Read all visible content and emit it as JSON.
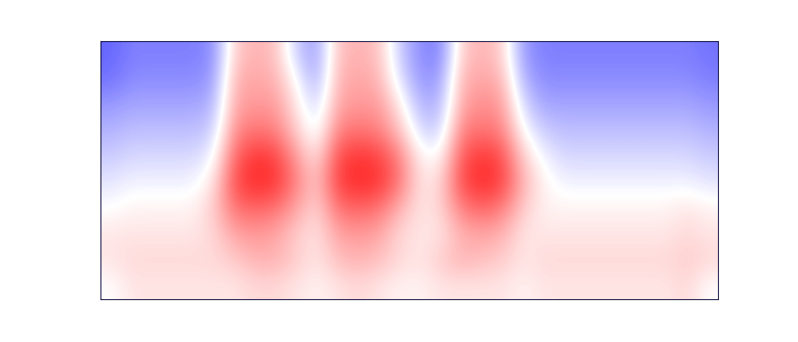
{
  "chart_data": {
    "type": "heatmap",
    "color": "bwr",
    "tick_labels": false,
    "color_range": [
      -1,
      1
    ],
    "cells": [
      [
        -0.6,
        -0.5,
        -0.5,
        -0.5,
        -0.5,
        -0.45,
        0.2,
        0.3,
        0.25,
        -0.2,
        -0.4,
        0.25,
        0.3,
        0.25,
        -0.2,
        -0.45,
        -0.5,
        0.2,
        0.3,
        0.2,
        -0.4,
        -0.5,
        -0.5,
        -0.5,
        -0.5,
        -0.5,
        -0.5,
        -0.5,
        -0.5,
        -0.55
      ],
      [
        -0.55,
        -0.45,
        -0.45,
        -0.45,
        -0.45,
        -0.4,
        0.3,
        0.35,
        0.3,
        0.0,
        -0.35,
        0.3,
        0.35,
        0.3,
        -0.1,
        -0.4,
        -0.4,
        0.3,
        0.35,
        0.3,
        -0.3,
        -0.45,
        -0.45,
        -0.45,
        -0.45,
        -0.45,
        -0.45,
        -0.45,
        -0.45,
        -0.5
      ],
      [
        -0.4,
        -0.35,
        -0.35,
        -0.35,
        -0.35,
        -0.3,
        0.35,
        0.4,
        0.4,
        0.1,
        -0.2,
        0.35,
        0.4,
        0.4,
        0.1,
        -0.3,
        -0.3,
        0.35,
        0.45,
        0.4,
        -0.15,
        -0.35,
        -0.35,
        -0.35,
        -0.35,
        -0.35,
        -0.35,
        -0.35,
        -0.35,
        -0.4
      ],
      [
        -0.3,
        -0.25,
        -0.25,
        -0.25,
        -0.25,
        -0.2,
        0.45,
        0.55,
        0.5,
        0.2,
        -0.1,
        0.5,
        0.55,
        0.5,
        0.25,
        -0.15,
        -0.2,
        0.5,
        0.55,
        0.5,
        0.0,
        -0.2,
        -0.25,
        -0.25,
        -0.25,
        -0.25,
        -0.25,
        -0.25,
        -0.25,
        -0.3
      ],
      [
        -0.2,
        -0.15,
        -0.15,
        -0.15,
        -0.15,
        -0.05,
        0.6,
        0.8,
        0.75,
        0.4,
        0.1,
        0.7,
        0.8,
        0.75,
        0.5,
        0.05,
        0.0,
        0.65,
        0.8,
        0.7,
        0.2,
        -0.05,
        -0.15,
        -0.15,
        -0.15,
        -0.15,
        -0.15,
        -0.15,
        -0.15,
        -0.2
      ],
      [
        -0.1,
        -0.05,
        -0.05,
        -0.05,
        -0.05,
        0.1,
        0.7,
        0.85,
        0.8,
        0.5,
        0.2,
        0.75,
        0.85,
        0.8,
        0.55,
        0.1,
        0.15,
        0.7,
        0.85,
        0.75,
        0.3,
        0.05,
        -0.05,
        -0.05,
        -0.05,
        -0.05,
        -0.05,
        -0.05,
        -0.05,
        -0.1
      ],
      [
        0.0,
        0.05,
        0.05,
        0.05,
        0.05,
        0.2,
        0.55,
        0.6,
        0.55,
        0.35,
        0.15,
        0.55,
        0.6,
        0.55,
        0.3,
        0.1,
        0.15,
        0.5,
        0.6,
        0.5,
        0.2,
        0.05,
        0.05,
        0.05,
        0.05,
        0.05,
        0.05,
        0.05,
        0.1,
        0.05
      ],
      [
        0.1,
        0.1,
        0.1,
        0.1,
        0.1,
        0.15,
        0.35,
        0.4,
        0.35,
        0.2,
        0.1,
        0.35,
        0.4,
        0.35,
        0.15,
        0.1,
        0.1,
        0.3,
        0.35,
        0.3,
        0.1,
        0.1,
        0.1,
        0.1,
        0.1,
        0.1,
        0.1,
        0.1,
        0.15,
        0.1
      ],
      [
        0.1,
        0.15,
        0.15,
        0.15,
        0.15,
        0.15,
        0.2,
        0.3,
        0.3,
        0.2,
        0.1,
        0.25,
        0.3,
        0.25,
        0.15,
        0.1,
        0.2,
        0.3,
        0.25,
        0.2,
        0.1,
        0.15,
        0.15,
        0.15,
        0.15,
        0.15,
        0.15,
        0.15,
        0.2,
        0.15
      ],
      [
        0.0,
        0.1,
        0.1,
        0.1,
        0.1,
        0.1,
        0.1,
        0.15,
        0.15,
        0.1,
        0.05,
        0.1,
        0.15,
        0.1,
        0.05,
        0.05,
        0.1,
        0.1,
        0.1,
        0.1,
        0.05,
        0.1,
        0.1,
        0.1,
        0.1,
        0.1,
        0.1,
        0.1,
        0.15,
        0.0
      ]
    ]
  }
}
